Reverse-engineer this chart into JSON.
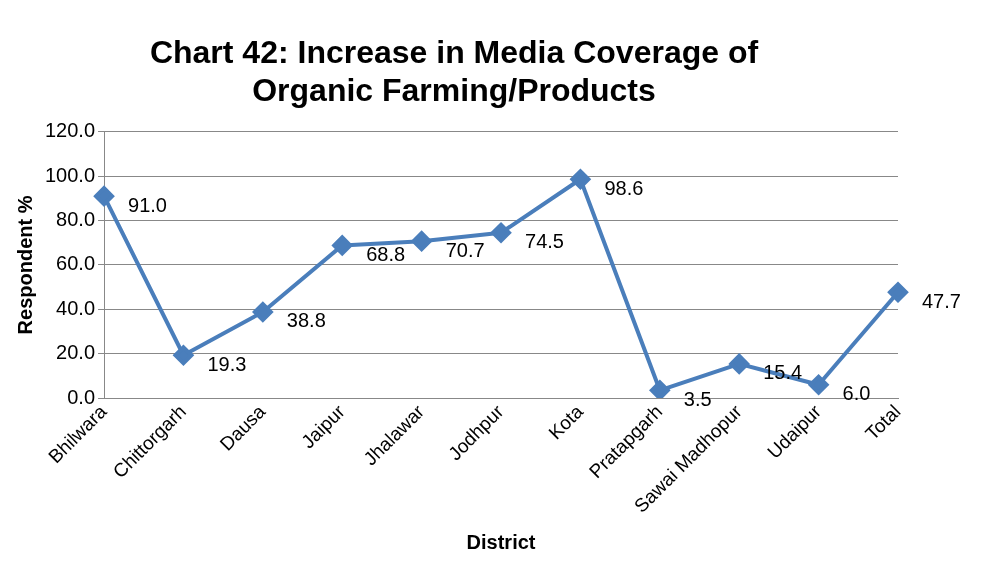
{
  "chart_data": {
    "type": "line",
    "title": "Chart 42: Increase in Media Coverage of Organic Farming/Products",
    "xlabel": "District",
    "ylabel": "Respondent %",
    "categories": [
      "Bhilwara",
      "Chittorgarh",
      "Dausa",
      "Jaipur",
      "Jhalawar",
      "Jodhpur",
      "Kota",
      "Pratapgarh",
      "Sawai Madhopur",
      "Udaipur",
      "Total"
    ],
    "series": [
      {
        "color": "#4a7ebb",
        "values": [
          91.0,
          19.3,
          38.8,
          68.8,
          70.7,
          74.5,
          98.6,
          3.5,
          15.4,
          6.0,
          47.7
        ],
        "value_labels": [
          "91.0",
          "19.3",
          "38.8",
          "68.8",
          "70.7",
          "74.5",
          "98.6",
          "3.5",
          "15.4",
          "6.0",
          "47.7"
        ]
      }
    ],
    "ylim": [
      0,
      120
    ],
    "yticks": [
      {
        "value": 0,
        "label": "0.0"
      },
      {
        "value": 20,
        "label": "20.0"
      },
      {
        "value": 40,
        "label": "40.0"
      },
      {
        "value": 60,
        "label": "60.0"
      },
      {
        "value": 80,
        "label": "80.0"
      },
      {
        "value": 100,
        "label": "100.0"
      },
      {
        "value": 120,
        "label": "120.0"
      }
    ],
    "grid": "y",
    "marker": "diamond",
    "line_style": "solid",
    "legend": false
  }
}
